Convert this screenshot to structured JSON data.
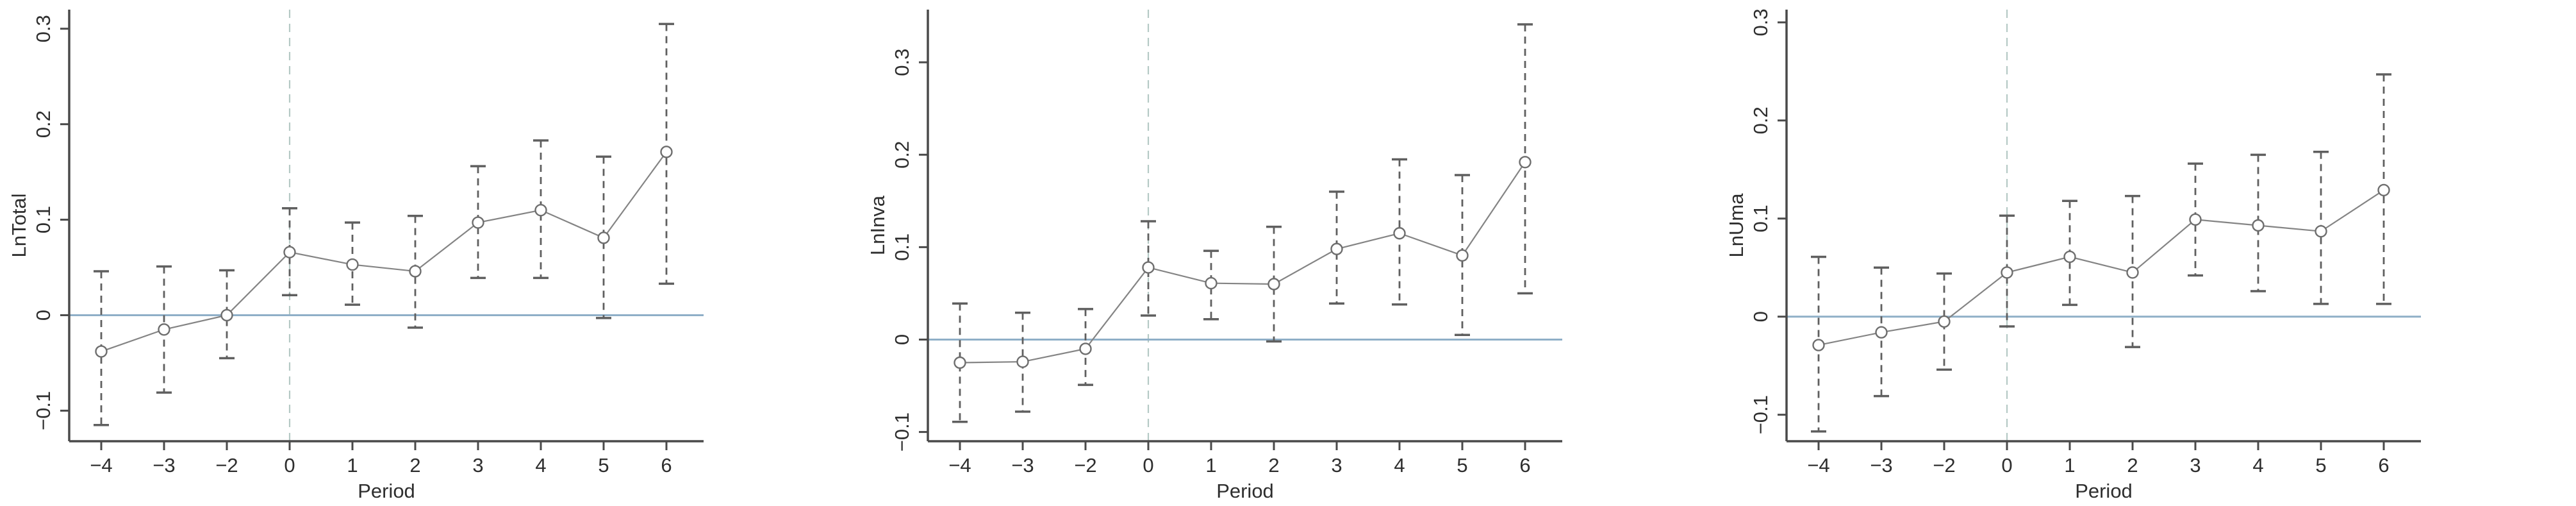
{
  "figure": {
    "background": "#ffffff",
    "n_panels": 3
  },
  "style": {
    "axis_color": "#4a4a4a",
    "text_color": "#2e2e2e",
    "data_line_color": "#848484",
    "marker_stroke_color": "#6e6e6e",
    "marker_fill_color": "#ffffff",
    "ci_color": "#5f5f5f",
    "zero_line_color": "#8fafc7",
    "event_line_color": "#b5c9c5"
  },
  "chart_data": [
    {
      "type": "line",
      "title": "",
      "ylabel": "LnTotal",
      "xlabel": "Period",
      "x": [
        -4,
        -3,
        -2,
        0,
        1,
        2,
        3,
        4,
        5,
        6
      ],
      "x_tick_labels": [
        "−4",
        "−3",
        "−2",
        "0",
        "1",
        "2",
        "3",
        "4",
        "5",
        "6"
      ],
      "y_ticks": [
        -0.1,
        0,
        0.1,
        0.2,
        0.3
      ],
      "y_tick_labels": [
        "−0.1",
        "0",
        "0.1",
        "0.2",
        "0.3"
      ],
      "ylim": [
        -0.132,
        0.32
      ],
      "estimates": [
        -0.038,
        -0.015,
        0.0,
        0.066,
        0.053,
        0.046,
        0.097,
        0.11,
        0.081,
        0.171
      ],
      "ci_low": [
        -0.115,
        -0.081,
        -0.045,
        0.021,
        0.011,
        -0.013,
        0.039,
        0.039,
        -0.003,
        0.033
      ],
      "ci_high": [
        0.046,
        0.051,
        0.047,
        0.112,
        0.097,
        0.104,
        0.156,
        0.183,
        0.166,
        0.305
      ],
      "zero_line_y": 0,
      "event_line_x": 0,
      "grid": false,
      "legend_position": "none"
    },
    {
      "type": "line",
      "title": "",
      "ylabel": "LnInva",
      "xlabel": "Period",
      "x": [
        -4,
        -3,
        -2,
        0,
        1,
        2,
        3,
        4,
        5,
        6
      ],
      "x_tick_labels": [
        "−4",
        "−3",
        "−2",
        "0",
        "1",
        "2",
        "3",
        "4",
        "5",
        "6"
      ],
      "y_ticks": [
        -0.1,
        0,
        0.1,
        0.2,
        0.3
      ],
      "y_tick_labels": [
        "−0.1",
        "0",
        "0.1",
        "0.2",
        "0.3"
      ],
      "ylim": [
        -0.11,
        0.357
      ],
      "estimates": [
        -0.025,
        -0.024,
        -0.01,
        0.078,
        0.061,
        0.06,
        0.098,
        0.115,
        0.091,
        0.192
      ],
      "ci_low": [
        -0.089,
        -0.078,
        -0.049,
        0.026,
        0.022,
        -0.002,
        0.039,
        0.038,
        0.005,
        0.05
      ],
      "ci_high": [
        0.039,
        0.029,
        0.033,
        0.128,
        0.096,
        0.122,
        0.16,
        0.195,
        0.178,
        0.341
      ],
      "zero_line_y": 0,
      "event_line_x": 0,
      "grid": false,
      "legend_position": "none"
    },
    {
      "type": "line",
      "title": "",
      "ylabel": "LnUma",
      "xlabel": "Period",
      "x": [
        -4,
        -3,
        -2,
        0,
        1,
        2,
        3,
        4,
        5,
        6
      ],
      "x_tick_labels": [
        "−4",
        "−3",
        "−2",
        "0",
        "1",
        "2",
        "3",
        "4",
        "5",
        "6"
      ],
      "y_ticks": [
        -0.1,
        0,
        0.1,
        0.2,
        0.3
      ],
      "y_tick_labels": [
        "−0.1",
        "0",
        "0.1",
        "0.2",
        "0.3"
      ],
      "ylim": [
        -0.127,
        0.313
      ],
      "estimates": [
        -0.029,
        -0.016,
        -0.005,
        0.045,
        0.061,
        0.045,
        0.099,
        0.093,
        0.087,
        0.129
      ],
      "ci_low": [
        -0.117,
        -0.081,
        -0.054,
        -0.01,
        0.012,
        -0.031,
        0.042,
        0.026,
        0.013,
        0.013
      ],
      "ci_high": [
        0.061,
        0.05,
        0.044,
        0.103,
        0.118,
        0.123,
        0.156,
        0.165,
        0.168,
        0.247
      ],
      "zero_line_y": 0,
      "event_line_x": 0,
      "grid": false,
      "legend_position": "none"
    }
  ]
}
